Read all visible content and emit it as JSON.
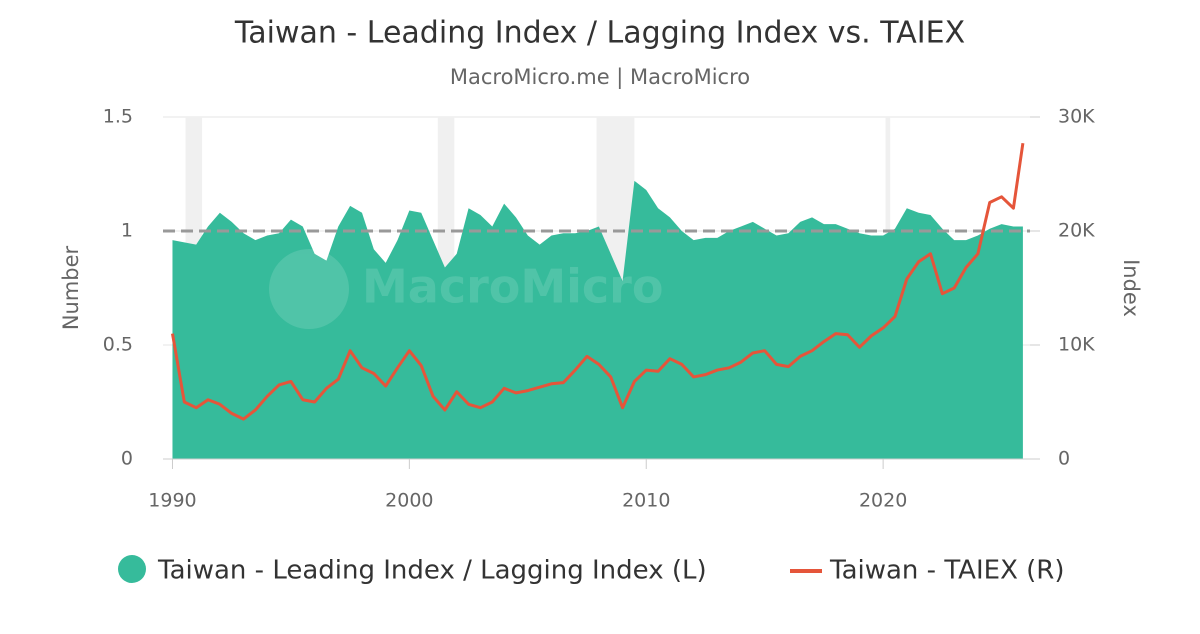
{
  "chart_data": {
    "type": "area-line",
    "title": "Taiwan - Leading Index / Lagging Index vs. TAIEX",
    "subtitle": "MacroMicro.me | MacroMicro",
    "watermark": "MacroMicro",
    "y_label": "Number",
    "y2_label": "Index",
    "xlim": [
      1989.6,
      2026.2
    ],
    "xticks": [
      1990,
      2000,
      2010,
      2020
    ],
    "ylim": [
      0,
      1.5
    ],
    "yticks": [
      0,
      0.5,
      1,
      1.5
    ],
    "y2lim": [
      0,
      30000
    ],
    "y2ticks": [
      0,
      {
        "value": 10000,
        "label": "10K"
      },
      {
        "value": 20000,
        "label": "20K"
      },
      {
        "value": 30000,
        "label": "30K"
      }
    ],
    "grid": true,
    "reference_line": 1,
    "shaded_periods": [
      [
        1990.55,
        1991.25
      ],
      [
        2001.2,
        2001.9
      ],
      [
        2007.9,
        2009.5
      ],
      [
        2020.1,
        2020.3
      ]
    ],
    "x": [
      1990,
      1990.5,
      1991,
      1991.5,
      1992,
      1992.5,
      1993,
      1993.5,
      1994,
      1994.5,
      1995,
      1995.5,
      1996,
      1996.5,
      1997,
      1997.5,
      1998,
      1998.5,
      1999,
      1999.5,
      2000,
      2000.5,
      2001,
      2001.5,
      2002,
      2002.5,
      2003,
      2003.5,
      2004,
      2004.5,
      2005,
      2005.5,
      2006,
      2006.5,
      2007,
      2007.5,
      2008,
      2008.5,
      2009,
      2009.5,
      2010,
      2010.5,
      2011,
      2011.5,
      2012,
      2012.5,
      2013,
      2013.5,
      2014,
      2014.5,
      2015,
      2015.5,
      2016,
      2016.5,
      2017,
      2017.5,
      2018,
      2018.5,
      2019,
      2019.5,
      2020,
      2020.5,
      2021,
      2021.5,
      2022,
      2022.5,
      2023,
      2023.5,
      2024,
      2024.5,
      2025,
      2025.5,
      2025.9
    ],
    "series": [
      {
        "name": "Taiwan - Leading Index / Lagging Index (L)",
        "type": "area",
        "color": "#36bb9b",
        "axis": "y",
        "values": [
          0.96,
          0.95,
          0.94,
          1.02,
          1.08,
          1.04,
          0.99,
          0.96,
          0.98,
          0.99,
          1.05,
          1.02,
          0.9,
          0.87,
          1.02,
          1.11,
          1.08,
          0.92,
          0.86,
          0.96,
          1.09,
          1.08,
          0.96,
          0.84,
          0.9,
          1.1,
          1.07,
          1.02,
          1.12,
          1.06,
          0.98,
          0.94,
          0.98,
          0.99,
          0.99,
          1.0,
          1.02,
          0.9,
          0.78,
          1.22,
          1.18,
          1.1,
          1.06,
          1.0,
          0.96,
          0.97,
          0.97,
          1.0,
          1.02,
          1.04,
          1.01,
          0.98,
          0.99,
          1.04,
          1.06,
          1.03,
          1.03,
          1.01,
          0.99,
          0.98,
          0.98,
          1.01,
          1.1,
          1.08,
          1.07,
          1.01,
          0.96,
          0.96,
          0.98,
          1.01,
          1.03,
          1.02,
          1.02
        ]
      },
      {
        "name": "Taiwan - TAIEX (R)",
        "type": "line",
        "color": "#e5553a",
        "axis": "y2",
        "values": [
          11000,
          5000,
          4500,
          5200,
          4800,
          4000,
          3500,
          4300,
          5500,
          6500,
          6800,
          5200,
          5000,
          6200,
          7000,
          9500,
          8000,
          7500,
          6400,
          8000,
          9500,
          8200,
          5500,
          4300,
          5900,
          4800,
          4500,
          5000,
          6200,
          5800,
          6000,
          6300,
          6600,
          6700,
          7800,
          9000,
          8300,
          7200,
          4500,
          6800,
          7800,
          7700,
          8800,
          8300,
          7200,
          7400,
          7800,
          8000,
          8500,
          9300,
          9500,
          8300,
          8100,
          9000,
          9500,
          10300,
          11000,
          10900,
          9800,
          10800,
          11500,
          12500,
          15800,
          17300,
          18000,
          14500,
          15000,
          16800,
          18000,
          22500,
          23000,
          22000,
          27700
        ]
      }
    ]
  }
}
